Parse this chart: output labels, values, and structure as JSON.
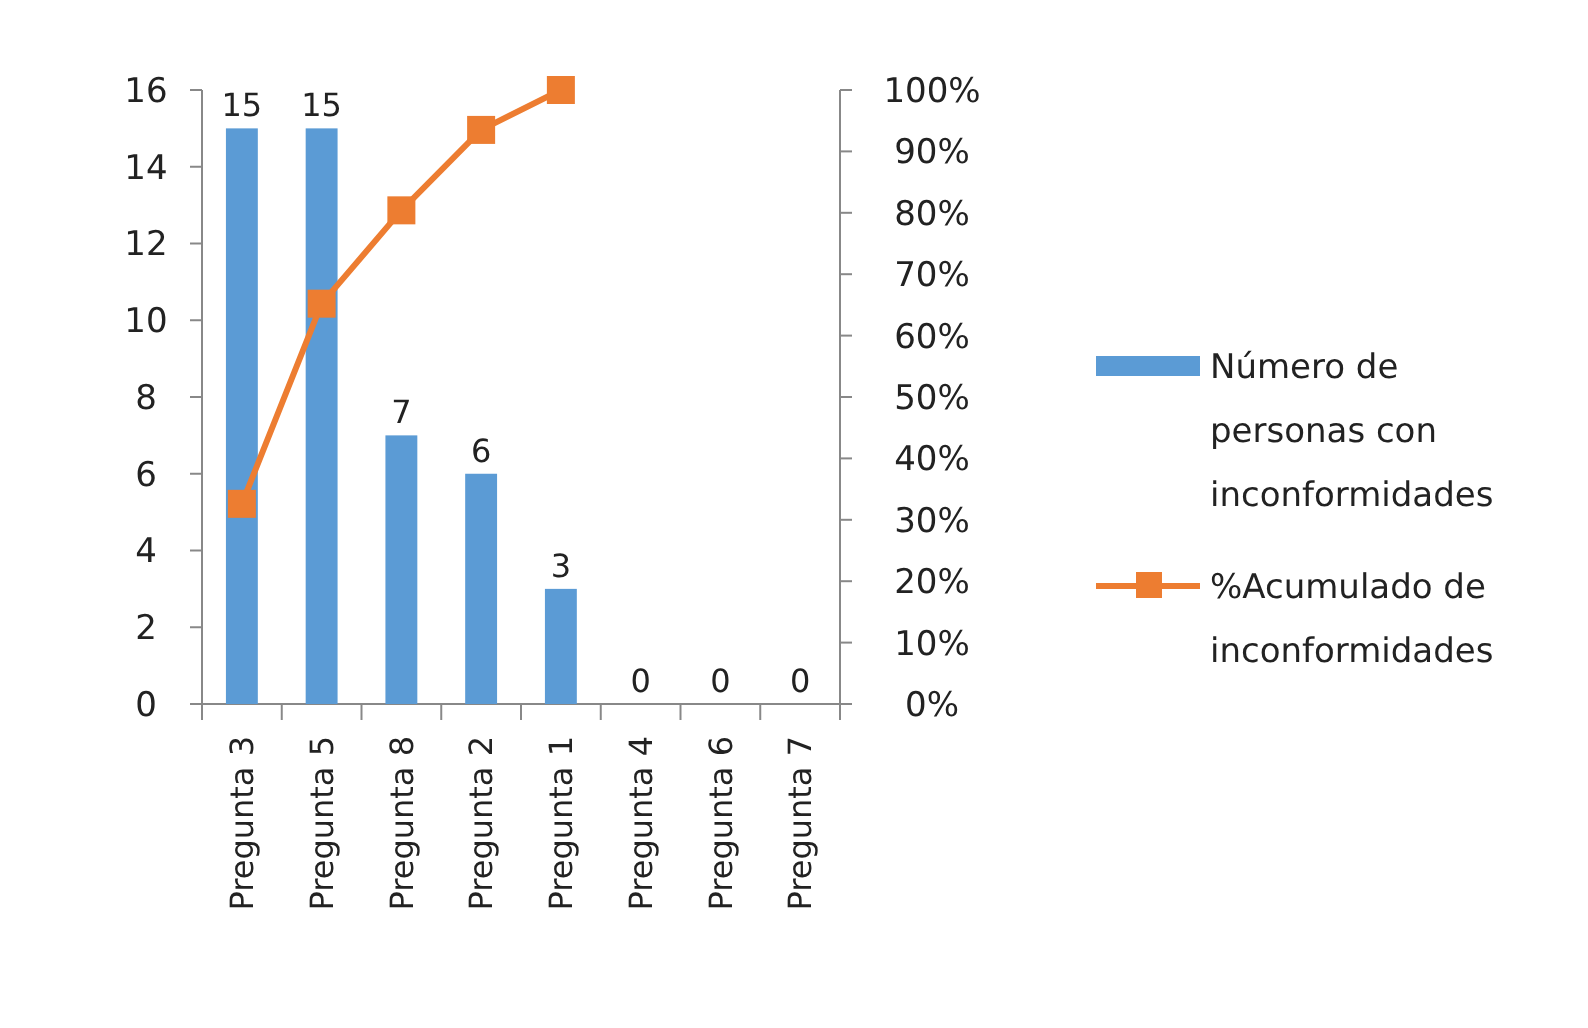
{
  "chart_data": {
    "type": "bar",
    "categories": [
      "Pregunta 3",
      "Pregunta 5",
      "Pregunta 8",
      "Pregunta 2",
      "Pregunta 1",
      "Pregunta 4",
      "Pregunta 6",
      "Pregunta 7"
    ],
    "series": [
      {
        "name": "Número de personas con inconformidades",
        "color": "#5b9bd5",
        "values": [
          15,
          15,
          7,
          6,
          3,
          0,
          0,
          0
        ],
        "value_labels": [
          "15",
          "15",
          "7",
          "6",
          "3",
          "0",
          "0",
          "0"
        ]
      },
      {
        "name": "%Acumulado de inconformidades",
        "type": "line",
        "axis": "y2",
        "color": "#ed7d31",
        "marker": "square",
        "values": [
          32.6,
          65.2,
          80.4,
          93.5,
          100,
          null,
          null,
          null
        ]
      }
    ],
    "ylim": [
      0,
      16
    ],
    "yticks": [
      0,
      2,
      4,
      6,
      8,
      10,
      12,
      14,
      16
    ],
    "y2lim": [
      0,
      100
    ],
    "y2ticks": [
      {
        "value": 0,
        "label": "0%"
      },
      {
        "value": 10,
        "label": "10%"
      },
      {
        "value": 20,
        "label": "20%"
      },
      {
        "value": 30,
        "label": "30%"
      },
      {
        "value": 40,
        "label": "40%"
      },
      {
        "value": 50,
        "label": "50%"
      },
      {
        "value": 60,
        "label": "60%"
      },
      {
        "value": 70,
        "label": "70%"
      },
      {
        "value": 80,
        "label": "80%"
      },
      {
        "value": 90,
        "label": "90%"
      },
      {
        "value": 100,
        "label": "100%"
      }
    ],
    "legend": "right",
    "grid": false
  }
}
